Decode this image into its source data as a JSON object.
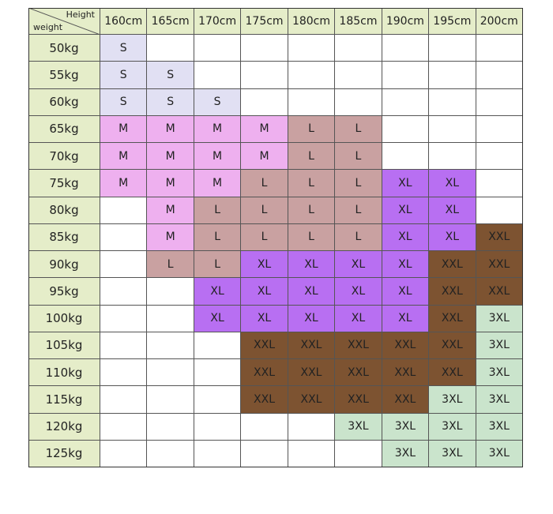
{
  "table": {
    "corner": {
      "top": "Height",
      "bottom": "weight"
    },
    "columns": [
      "160cm",
      "165cm",
      "170cm",
      "175cm",
      "180cm",
      "185cm",
      "190cm",
      "195cm",
      "200cm"
    ],
    "header_color": "#e5edc9",
    "cell_colors": {
      "S": "#e1e0f3",
      "M": "#eeb0ef",
      "L": "#c9a1a1",
      "XL": "#b86ff2",
      "XXL": "#7d5331",
      "3XL": "#cae4cc"
    },
    "rows": [
      {
        "label": "50kg",
        "cells": [
          "S",
          null,
          null,
          null,
          null,
          null,
          null,
          null,
          null
        ]
      },
      {
        "label": "55kg",
        "cells": [
          "S",
          "S",
          null,
          null,
          null,
          null,
          null,
          null,
          null
        ]
      },
      {
        "label": "60kg",
        "cells": [
          "S",
          "S",
          "S",
          null,
          null,
          null,
          null,
          null,
          null
        ]
      },
      {
        "label": "65kg",
        "cells": [
          "M",
          "M",
          "M",
          "M",
          "L",
          "L",
          null,
          null,
          null
        ]
      },
      {
        "label": "70kg",
        "cells": [
          "M",
          "M",
          "M",
          "M",
          "L",
          "L",
          null,
          null,
          null
        ]
      },
      {
        "label": "75kg",
        "cells": [
          "M",
          "M",
          "M",
          "L",
          "L",
          "L",
          "XL",
          "XL",
          null
        ]
      },
      {
        "label": "80kg",
        "cells": [
          null,
          "M",
          "L",
          "L",
          "L",
          "L",
          "XL",
          "XL",
          null
        ]
      },
      {
        "label": "85kg",
        "cells": [
          null,
          "M",
          "L",
          "L",
          "L",
          "L",
          "XL",
          "XL",
          "XXL"
        ]
      },
      {
        "label": "90kg",
        "cells": [
          null,
          "L",
          "L",
          "XL",
          "XL",
          "XL",
          "XL",
          "XXL",
          "XXL"
        ]
      },
      {
        "label": "95kg",
        "cells": [
          null,
          null,
          "XL",
          "XL",
          "XL",
          "XL",
          "XL",
          "XXL",
          "XXL"
        ]
      },
      {
        "label": "100kg",
        "cells": [
          null,
          null,
          "XL",
          "XL",
          "XL",
          "XL",
          "XL",
          "XXL",
          "3XL"
        ]
      },
      {
        "label": "105kg",
        "cells": [
          null,
          null,
          null,
          "XXL",
          "XXL",
          "XXL",
          "XXL",
          "XXL",
          "3XL"
        ]
      },
      {
        "label": "110kg",
        "cells": [
          null,
          null,
          null,
          "XXL",
          "XXL",
          "XXL",
          "XXL",
          "XXL",
          "3XL"
        ]
      },
      {
        "label": "115kg",
        "cells": [
          null,
          null,
          null,
          "XXL",
          "XXL",
          "XXL",
          "XXL",
          "3XL",
          "3XL"
        ]
      },
      {
        "label": "120kg",
        "cells": [
          null,
          null,
          null,
          null,
          null,
          "3XL",
          "3XL",
          "3XL",
          "3XL"
        ]
      },
      {
        "label": "125kg",
        "cells": [
          null,
          null,
          null,
          null,
          null,
          null,
          "3XL",
          "3XL",
          "3XL"
        ]
      }
    ]
  }
}
